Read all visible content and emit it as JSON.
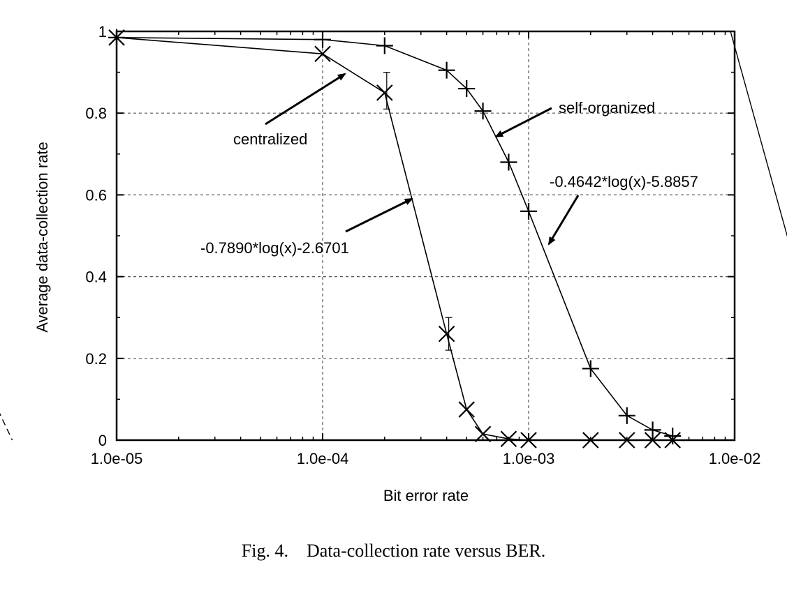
{
  "caption": {
    "fig_label": "Fig. 4.",
    "text": "Data-collection rate versus BER."
  },
  "chart_data": {
    "type": "line",
    "xlabel": "Bit error rate",
    "ylabel": "Average data-collection rate",
    "xscale": "log",
    "xlim": [
      1e-05,
      0.01
    ],
    "ylim": [
      0,
      1
    ],
    "x_ticks": [
      {
        "value": 1e-05,
        "label": "1.0e-05"
      },
      {
        "value": 0.0001,
        "label": "1.0e-04"
      },
      {
        "value": 0.001,
        "label": "1.0e-03"
      },
      {
        "value": 0.01,
        "label": "1.0e-02"
      }
    ],
    "y_ticks": [
      {
        "value": 0,
        "label": "0"
      },
      {
        "value": 0.2,
        "label": "0.2"
      },
      {
        "value": 0.4,
        "label": "0.4"
      },
      {
        "value": 0.6,
        "label": "0.6"
      },
      {
        "value": 0.8,
        "label": "0.8"
      },
      {
        "value": 1,
        "label": "1"
      }
    ],
    "grid": true,
    "series": [
      {
        "marker": "x",
        "x": [
          1e-05,
          0.0001,
          0.0002,
          0.0004,
          0.0005,
          0.0006,
          0.0008,
          0.001,
          0.002,
          0.003,
          0.004,
          0.005
        ],
        "y": [
          0.985,
          0.945,
          0.85,
          0.26,
          0.075,
          0.015,
          0.003,
          0.0,
          0.0,
          0.0,
          0.0,
          0.0
        ],
        "error_bars": [
          {
            "x": 0.0002,
            "low": 0.81,
            "high": 0.9
          },
          {
            "x": 0.0004,
            "low": 0.22,
            "high": 0.3
          }
        ]
      },
      {
        "marker": "plus",
        "x": [
          1e-05,
          0.0001,
          0.0002,
          0.0004,
          0.0005,
          0.0006,
          0.0008,
          0.001,
          0.002,
          0.003,
          0.004,
          0.005
        ],
        "y": [
          0.985,
          0.98,
          0.965,
          0.905,
          0.86,
          0.805,
          0.68,
          0.56,
          0.175,
          0.06,
          0.025,
          0.01
        ]
      }
    ],
    "fits": [
      {
        "label": "-0.7890*log(x)-2.6701",
        "slope": -0.789,
        "intercept": -2.6701,
        "style": "solid"
      },
      {
        "label": "-0.4642*log(x)-5.8857",
        "slope": -0.4642,
        "intercept": -5.8857,
        "style": "dashed"
      }
    ],
    "annotations": [
      {
        "text": "centralized"
      },
      {
        "text": "self-organized"
      },
      {
        "text": "-0.7890*log(x)-2.6701"
      },
      {
        "text": "-0.4642*log(x)-5.8857"
      }
    ]
  }
}
